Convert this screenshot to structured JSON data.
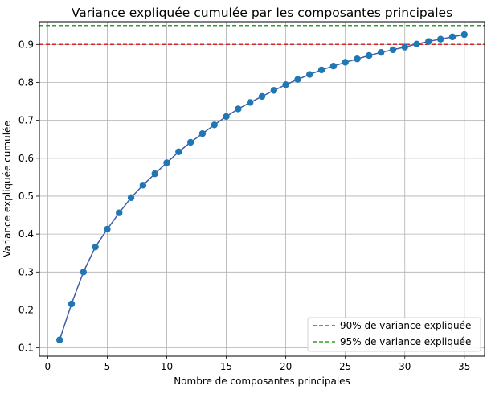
{
  "chart_data": {
    "type": "line",
    "title": "Variance expliquée cumulée par les composantes principales",
    "xlabel": "Nombre de composantes principales",
    "ylabel": "Variance expliquée cumulée",
    "xlim": [
      -0.7,
      36.7
    ],
    "ylim": [
      0.078,
      0.96
    ],
    "xticks": [
      0,
      5,
      10,
      15,
      20,
      25,
      30,
      35
    ],
    "xtick_labels": [
      "0",
      "5",
      "10",
      "15",
      "20",
      "25",
      "30",
      "35"
    ],
    "yticks": [
      0.1,
      0.2,
      0.3,
      0.4,
      0.5,
      0.6,
      0.7,
      0.8,
      0.9
    ],
    "ytick_labels": [
      "0.1",
      "0.2",
      "0.3",
      "0.4",
      "0.5",
      "0.6",
      "0.7",
      "0.8",
      "0.9"
    ],
    "grid": true,
    "legend_position": "lower-right",
    "series": [
      {
        "x": [
          1,
          2,
          3,
          4,
          5,
          6,
          7,
          8,
          9,
          10,
          11,
          12,
          13,
          14,
          15,
          16,
          17,
          18,
          19,
          20,
          21,
          22,
          23,
          24,
          25,
          26,
          27,
          28,
          29,
          30,
          31,
          32,
          33,
          34,
          35
        ],
        "values": [
          0.121,
          0.216,
          0.3,
          0.366,
          0.413,
          0.456,
          0.496,
          0.529,
          0.559,
          0.588,
          0.617,
          0.642,
          0.665,
          0.688,
          0.71,
          0.73,
          0.747,
          0.763,
          0.779,
          0.794,
          0.808,
          0.821,
          0.833,
          0.843,
          0.853,
          0.862,
          0.871,
          0.879,
          0.886,
          0.893,
          0.901,
          0.908,
          0.914,
          0.92,
          0.926
        ],
        "color": "#1f77b4"
      }
    ],
    "reference_lines": [
      {
        "label": "90% de variance expliquée",
        "y": 0.9,
        "color": "#d62728",
        "style": "dashed"
      },
      {
        "label": "95% de variance expliquée",
        "y": 0.95,
        "color": "#2ca02c",
        "style": "dashed"
      }
    ]
  }
}
